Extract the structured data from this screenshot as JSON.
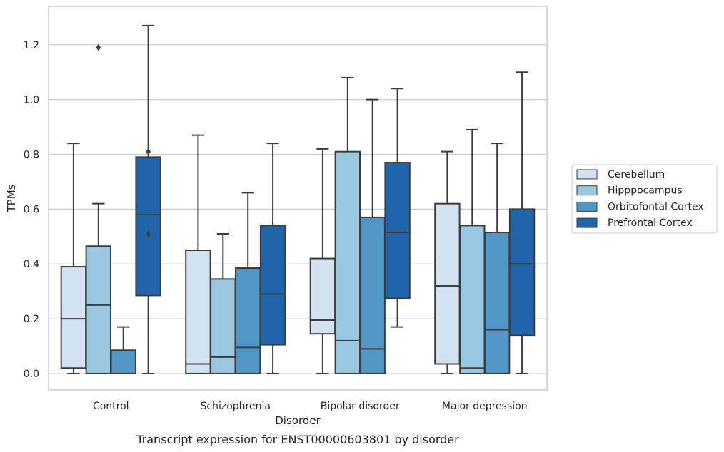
{
  "chart_data": {
    "type": "box",
    "caption": "Transcript expression for ENST00000603801 by disorder",
    "xlabel": "Disorder",
    "ylabel": "TPMs",
    "ylim": [
      -0.06,
      1.34
    ],
    "yticks": [
      0.0,
      0.2,
      0.4,
      0.6,
      0.8,
      1.0,
      1.2
    ],
    "ytick_labels": [
      "0.0",
      "0.2",
      "0.4",
      "0.6",
      "0.8",
      "1.0",
      "1.2"
    ],
    "grid": true,
    "legend_position": "right",
    "categories": [
      "Control",
      "Schizophrenia",
      "Bipolar disorder",
      "Major depression"
    ],
    "series": [
      {
        "name": "Cerebellum",
        "color": "#d2e2f1",
        "boxes": [
          {
            "whislo": 0.0,
            "q1": 0.02,
            "med": 0.2,
            "q3": 0.39,
            "whishi": 0.84,
            "fliers": []
          },
          {
            "whislo": 0.0,
            "q1": 0.0,
            "med": 0.035,
            "q3": 0.45,
            "whishi": 0.87,
            "fliers": []
          },
          {
            "whislo": 0.0,
            "q1": 0.145,
            "med": 0.195,
            "q3": 0.42,
            "whishi": 0.82,
            "fliers": []
          },
          {
            "whislo": 0.0,
            "q1": 0.035,
            "med": 0.32,
            "q3": 0.62,
            "whishi": 0.81,
            "fliers": []
          }
        ]
      },
      {
        "name": "Hipppocampus",
        "color": "#9ac8e0",
        "boxes": [
          {
            "whislo": 0.0,
            "q1": 0.0,
            "med": 0.25,
            "q3": 0.465,
            "whishi": 0.62,
            "fliers": [
              1.19
            ]
          },
          {
            "whislo": 0.0,
            "q1": 0.0,
            "med": 0.06,
            "q3": 0.345,
            "whishi": 0.51,
            "fliers": []
          },
          {
            "whislo": 0.0,
            "q1": 0.0,
            "med": 0.12,
            "q3": 0.81,
            "whishi": 1.08,
            "fliers": []
          },
          {
            "whislo": 0.0,
            "q1": 0.0,
            "med": 0.02,
            "q3": 0.54,
            "whishi": 0.89,
            "fliers": []
          }
        ]
      },
      {
        "name": "Orbitofontal Cortex",
        "color": "#5096c7",
        "boxes": [
          {
            "whislo": 0.0,
            "q1": 0.0,
            "med": 0.0,
            "q3": 0.085,
            "whishi": 0.17,
            "fliers": []
          },
          {
            "whislo": 0.0,
            "q1": 0.0,
            "med": 0.095,
            "q3": 0.385,
            "whishi": 0.66,
            "fliers": []
          },
          {
            "whislo": 0.0,
            "q1": 0.0,
            "med": 0.09,
            "q3": 0.57,
            "whishi": 1.0,
            "fliers": []
          },
          {
            "whislo": 0.0,
            "q1": 0.0,
            "med": 0.16,
            "q3": 0.515,
            "whishi": 0.84,
            "fliers": []
          }
        ]
      },
      {
        "name": "Prefrontal Cortex",
        "color": "#2065ab",
        "boxes": [
          {
            "whislo": 0.0,
            "q1": 0.285,
            "med": 0.58,
            "q3": 0.79,
            "whishi": 1.27,
            "fliers": [
              0.81,
              0.51
            ]
          },
          {
            "whislo": 0.0,
            "q1": 0.105,
            "med": 0.29,
            "q3": 0.54,
            "whishi": 0.84,
            "fliers": []
          },
          {
            "whislo": 0.17,
            "q1": 0.275,
            "med": 0.515,
            "q3": 0.77,
            "whishi": 1.04,
            "fliers": []
          },
          {
            "whislo": 0.0,
            "q1": 0.14,
            "med": 0.4,
            "q3": 0.6,
            "whishi": 1.1,
            "fliers": []
          }
        ]
      }
    ]
  }
}
